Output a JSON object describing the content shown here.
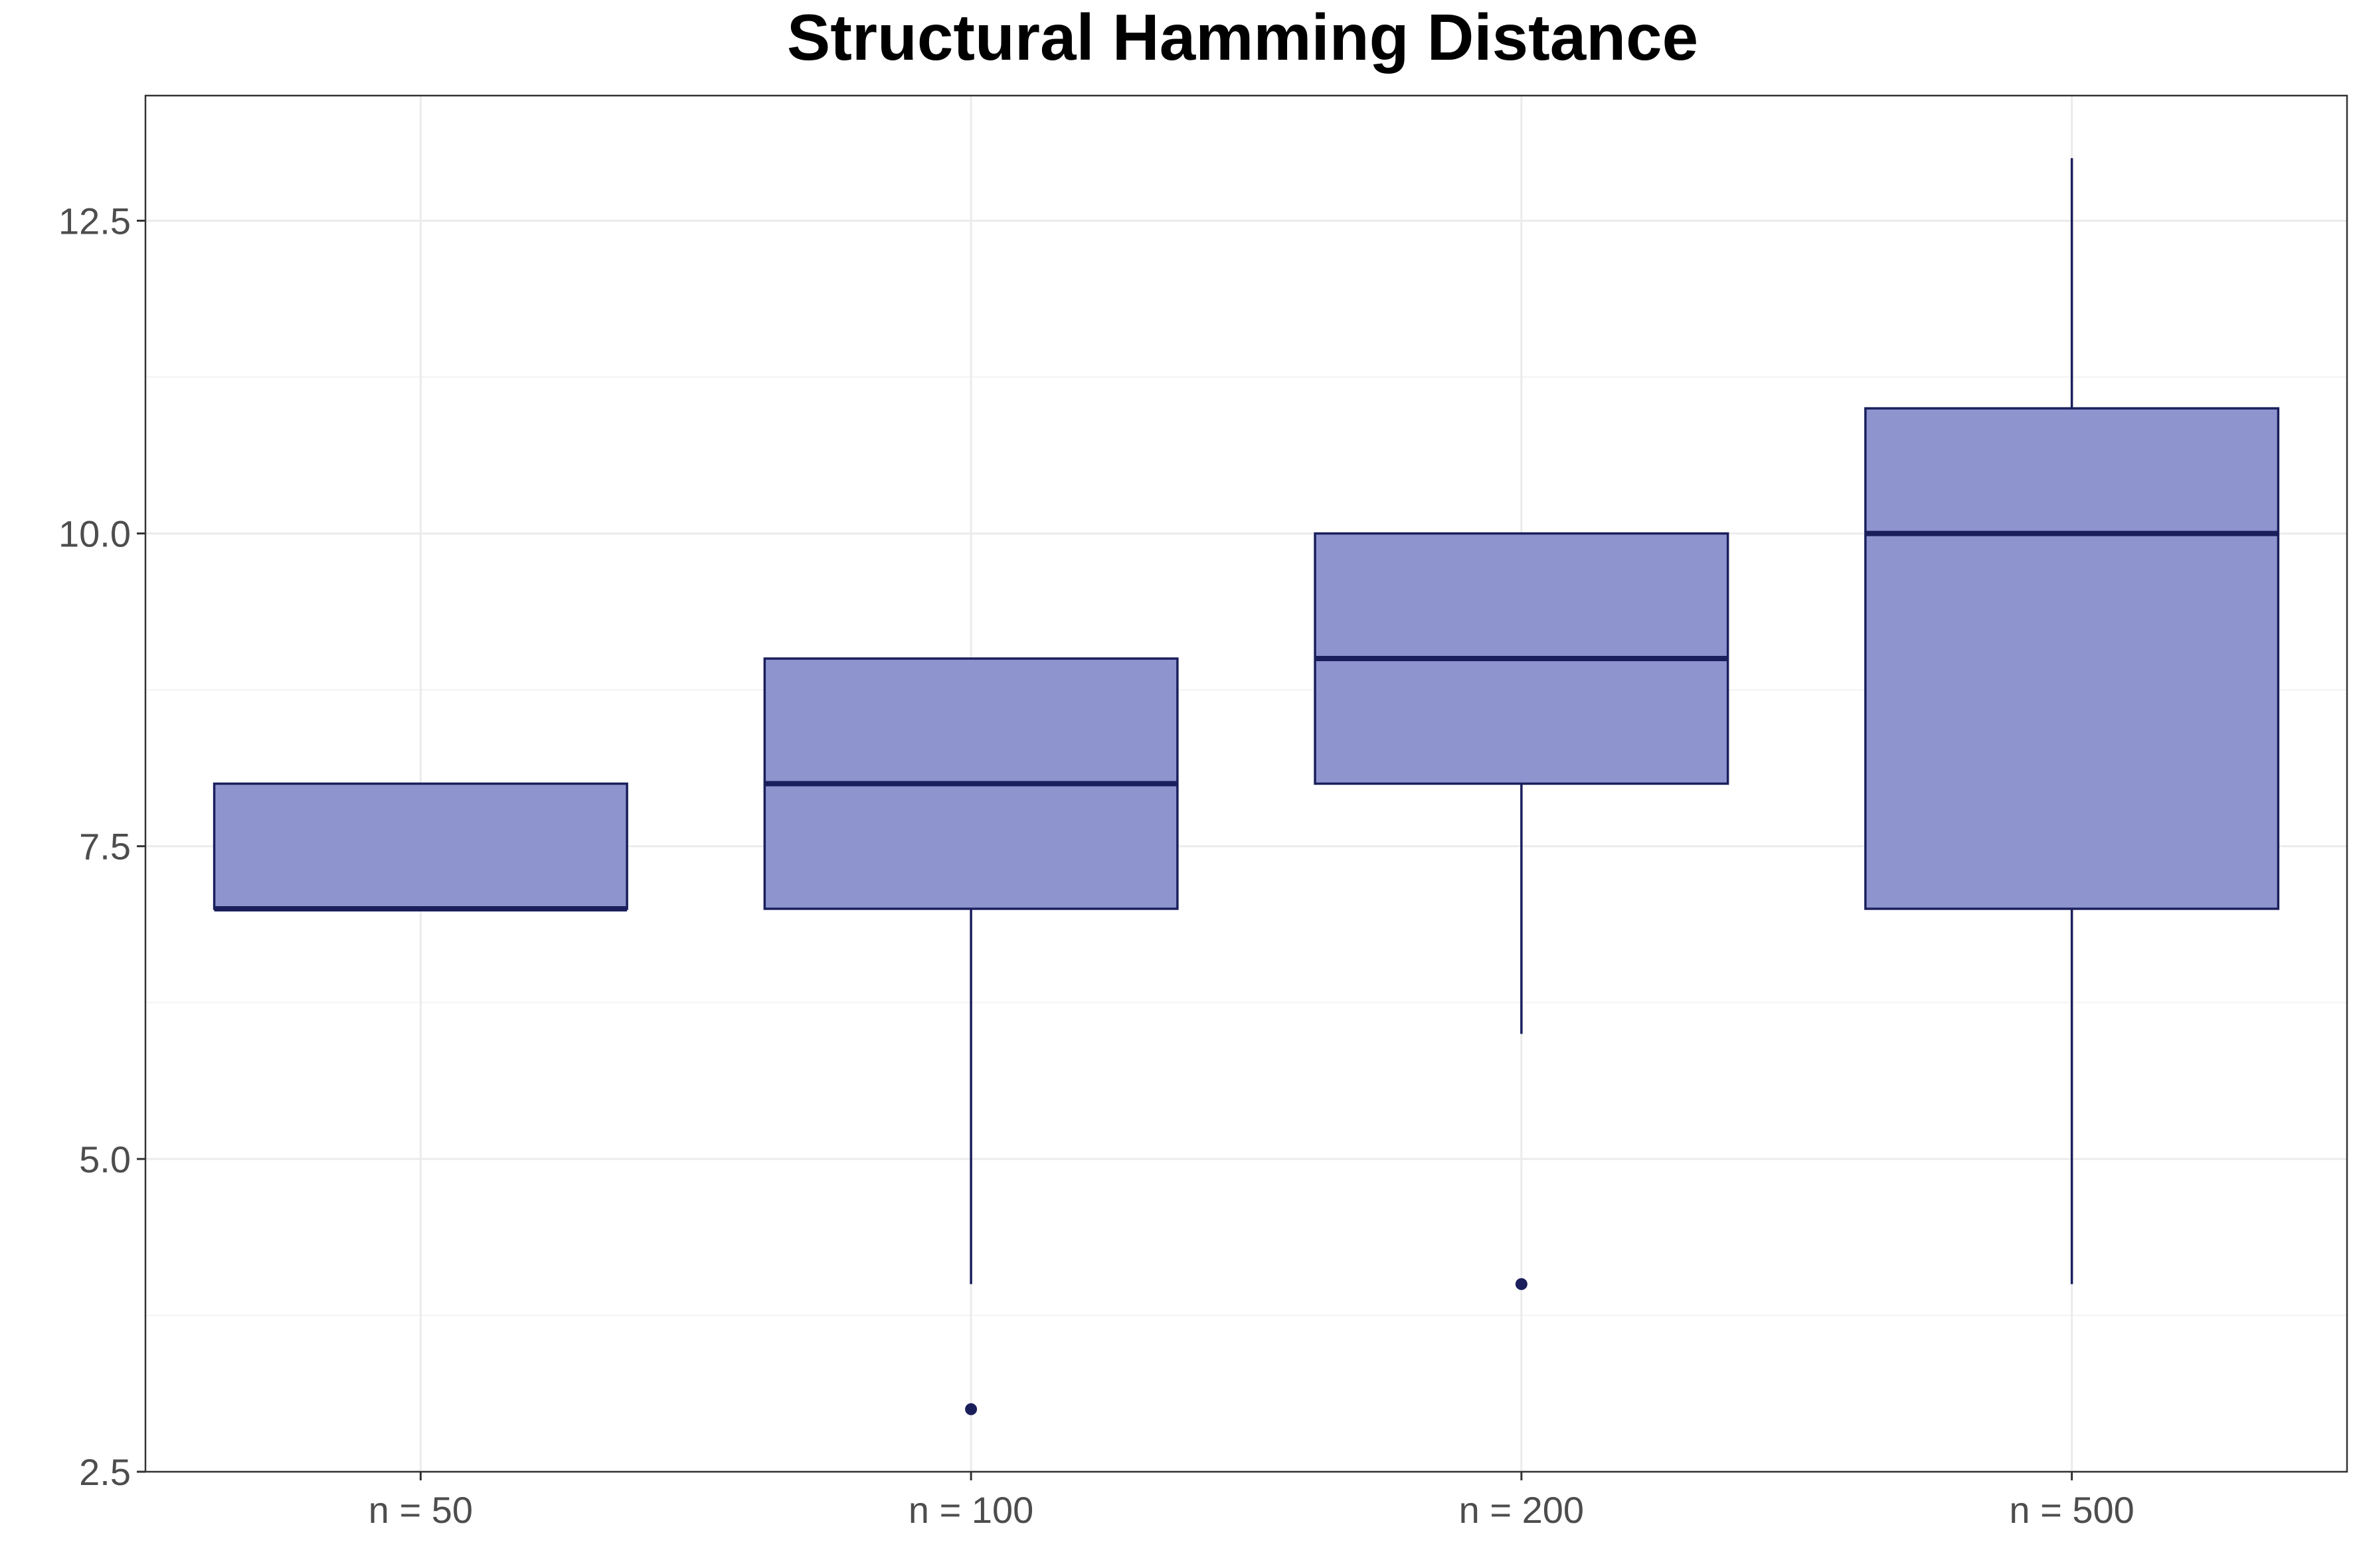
{
  "chart_data": {
    "type": "box",
    "title": "Structural Hamming Distance",
    "xlabel": "",
    "ylabel": "",
    "ylim": [
      2.5,
      13.5
    ],
    "y_ticks": [
      2.5,
      5.0,
      7.5,
      10.0,
      12.5
    ],
    "y_tick_labels": [
      "2.5",
      "5.0",
      "7.5",
      "10.0",
      "12.5"
    ],
    "grid": true,
    "legend": "none",
    "categories": [
      "n = 50",
      "n = 100",
      "n = 200",
      "n = 500"
    ],
    "boxes": [
      {
        "category": "n = 50",
        "whisker_low": 7,
        "q1": 7,
        "median": 7,
        "q3": 8,
        "whisker_high": 8,
        "outliers": []
      },
      {
        "category": "n = 100",
        "whisker_low": 4,
        "q1": 7,
        "median": 8,
        "q3": 9,
        "whisker_high": 9,
        "outliers": [
          3
        ]
      },
      {
        "category": "n = 200",
        "whisker_low": 6,
        "q1": 8,
        "median": 9,
        "q3": 10,
        "whisker_high": 10,
        "outliers": [
          4
        ]
      },
      {
        "category": "n = 500",
        "whisker_low": 4,
        "q1": 7,
        "median": 10,
        "q3": 11,
        "whisker_high": 13,
        "outliers": []
      }
    ],
    "colors": {
      "box_fill": "#8e95ce",
      "box_line": "#1a1f5c",
      "grid_major": "#ebebeb",
      "grid_minor": "#f3f3f3",
      "panel_border": "#333333",
      "tick_text": "#4d4d4d"
    }
  }
}
